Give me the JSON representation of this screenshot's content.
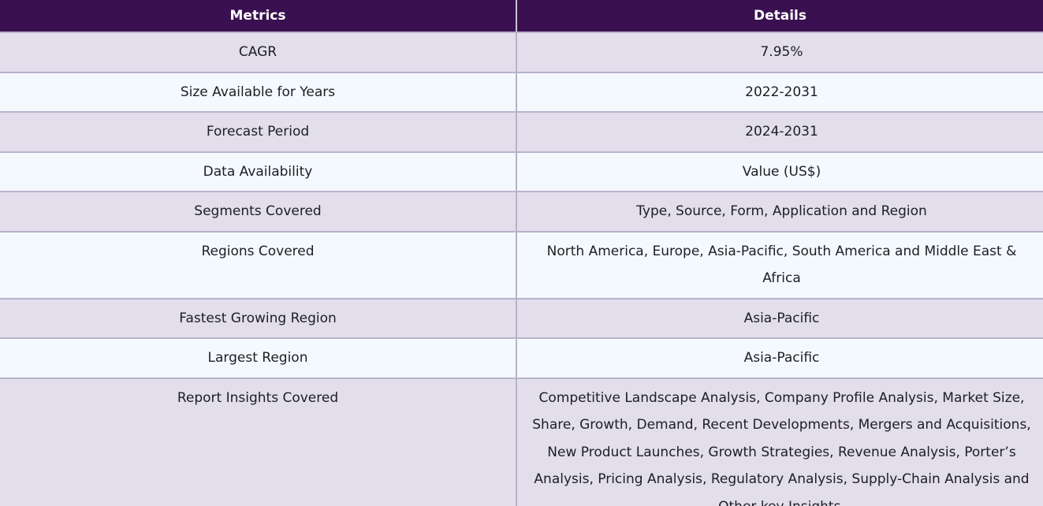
{
  "table": {
    "headers": [
      "Metrics",
      "Details"
    ],
    "rows": [
      {
        "metric": "CAGR",
        "detail": "7.95%"
      },
      {
        "metric": "Size Available for Years",
        "detail": "2022-2031"
      },
      {
        "metric": "Forecast Period",
        "detail": "2024-2031"
      },
      {
        "metric": "Data Availability",
        "detail": "Value (US$)"
      },
      {
        "metric": "Segments Covered",
        "detail": "Type, Source, Form, Application and Region"
      },
      {
        "metric": "Regions Covered",
        "detail": "North America, Europe, Asia-Pacific, South America and Middle East & Africa"
      },
      {
        "metric": "Fastest Growing Region",
        "detail": "Asia-Pacific"
      },
      {
        "metric": "Largest Region",
        "detail": "Asia-Pacific"
      },
      {
        "metric": "Report Insights Covered",
        "detail": "Competitive Landscape Analysis, Company Profile Analysis, Market Size, Share, Growth, Demand, Recent Developments, Mergers and Acquisitions, New Product Launches, Growth Strategies, Revenue Analysis, Porter’s Analysis, Pricing Analysis, Regulatory Analysis, Supply-Chain Analysis and Other key Insights."
      }
    ]
  },
  "colors": {
    "header_bg": "#3a1050",
    "row_odd_bg": "#e2deeb",
    "row_even_bg": "#f4f9fd",
    "border": "#b9b1cc"
  }
}
